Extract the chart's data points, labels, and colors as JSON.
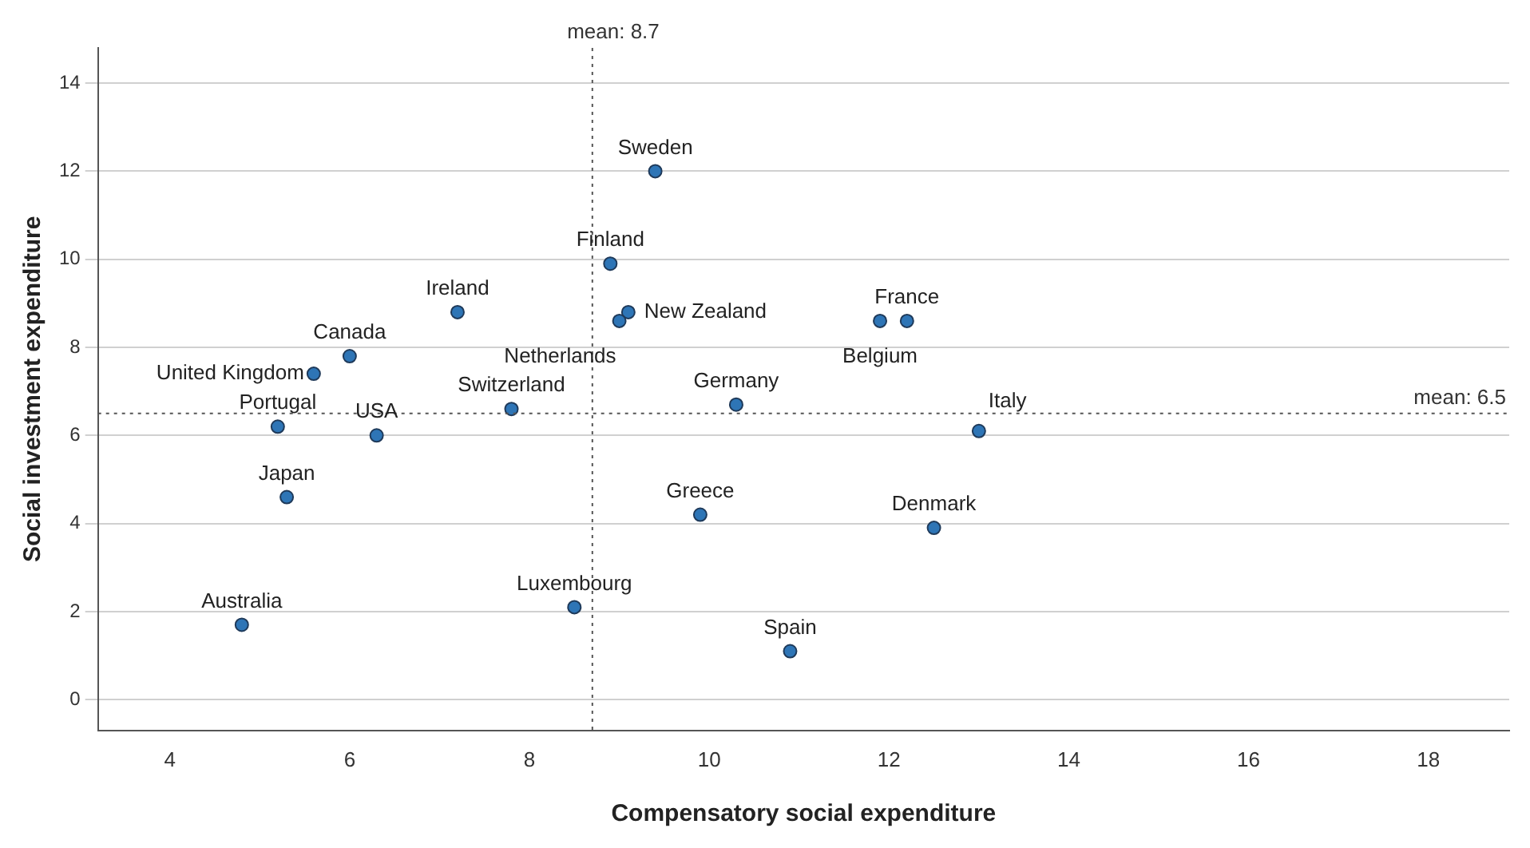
{
  "chart_data": {
    "type": "scatter",
    "xlabel": "Compensatory social expenditure",
    "ylabel": "Social investment expenditure",
    "x": [
      9.4,
      8.9,
      7.2,
      9.1,
      9.0,
      12.2,
      11.9,
      6.0,
      5.6,
      7.8,
      10.3,
      5.2,
      6.3,
      13.0,
      5.3,
      9.9,
      12.5,
      8.5,
      4.8,
      10.9
    ],
    "series": [
      {
        "color": "#2e75b6",
        "values": [
          12.0,
          9.9,
          8.8,
          8.8,
          8.6,
          8.6,
          8.6,
          7.8,
          7.4,
          6.6,
          6.7,
          6.2,
          6.0,
          6.1,
          4.6,
          4.2,
          3.9,
          2.1,
          1.7,
          1.1
        ]
      }
    ],
    "annotations": [
      {
        "text": "Sweden",
        "x": 9.4,
        "y": 12.0
      },
      {
        "text": "Finland",
        "x": 8.9,
        "y": 9.9
      },
      {
        "text": "Ireland",
        "x": 7.2,
        "y": 8.8
      },
      {
        "text": "New Zealand",
        "x": 9.1,
        "y": 8.8
      },
      {
        "text": "Netherlands",
        "x": 9.0,
        "y": 8.6
      },
      {
        "text": "France",
        "x": 12.2,
        "y": 8.6
      },
      {
        "text": "Belgium",
        "x": 11.9,
        "y": 8.6
      },
      {
        "text": "Canada",
        "x": 6.0,
        "y": 7.8
      },
      {
        "text": "United Kingdom",
        "x": 5.6,
        "y": 7.4
      },
      {
        "text": "Switzerland",
        "x": 7.8,
        "y": 6.6
      },
      {
        "text": "Germany",
        "x": 10.3,
        "y": 6.7
      },
      {
        "text": "Portugal",
        "x": 5.2,
        "y": 6.2
      },
      {
        "text": "USA",
        "x": 6.3,
        "y": 6.0
      },
      {
        "text": "Italy",
        "x": 13.0,
        "y": 6.1
      },
      {
        "text": "Japan",
        "x": 5.3,
        "y": 4.6
      },
      {
        "text": "Greece",
        "x": 9.9,
        "y": 4.2
      },
      {
        "text": "Denmark",
        "x": 12.5,
        "y": 3.9
      },
      {
        "text": "Luxembourg",
        "x": 8.5,
        "y": 2.1
      },
      {
        "text": "Australia",
        "x": 4.8,
        "y": 1.7
      },
      {
        "text": "Spain",
        "x": 10.9,
        "y": 1.1
      }
    ],
    "ref_lines": [
      {
        "axis": "x",
        "value": 8.7,
        "label": "mean: 8.7",
        "color": "#555555",
        "line_style": "dotted"
      },
      {
        "axis": "y",
        "value": 6.5,
        "label": "mean: 6.5",
        "color": "#555555",
        "line_style": "dotted"
      }
    ],
    "xlim": [
      3.2,
      18.9
    ],
    "xticks": [
      4,
      6,
      8,
      10,
      12,
      14,
      16,
      18
    ],
    "ylim": [
      -0.7,
      14.8
    ],
    "yticks": [
      0,
      2,
      4,
      6,
      8,
      10,
      12,
      14
    ],
    "grid": "y",
    "marker": "circle",
    "legend": false
  }
}
